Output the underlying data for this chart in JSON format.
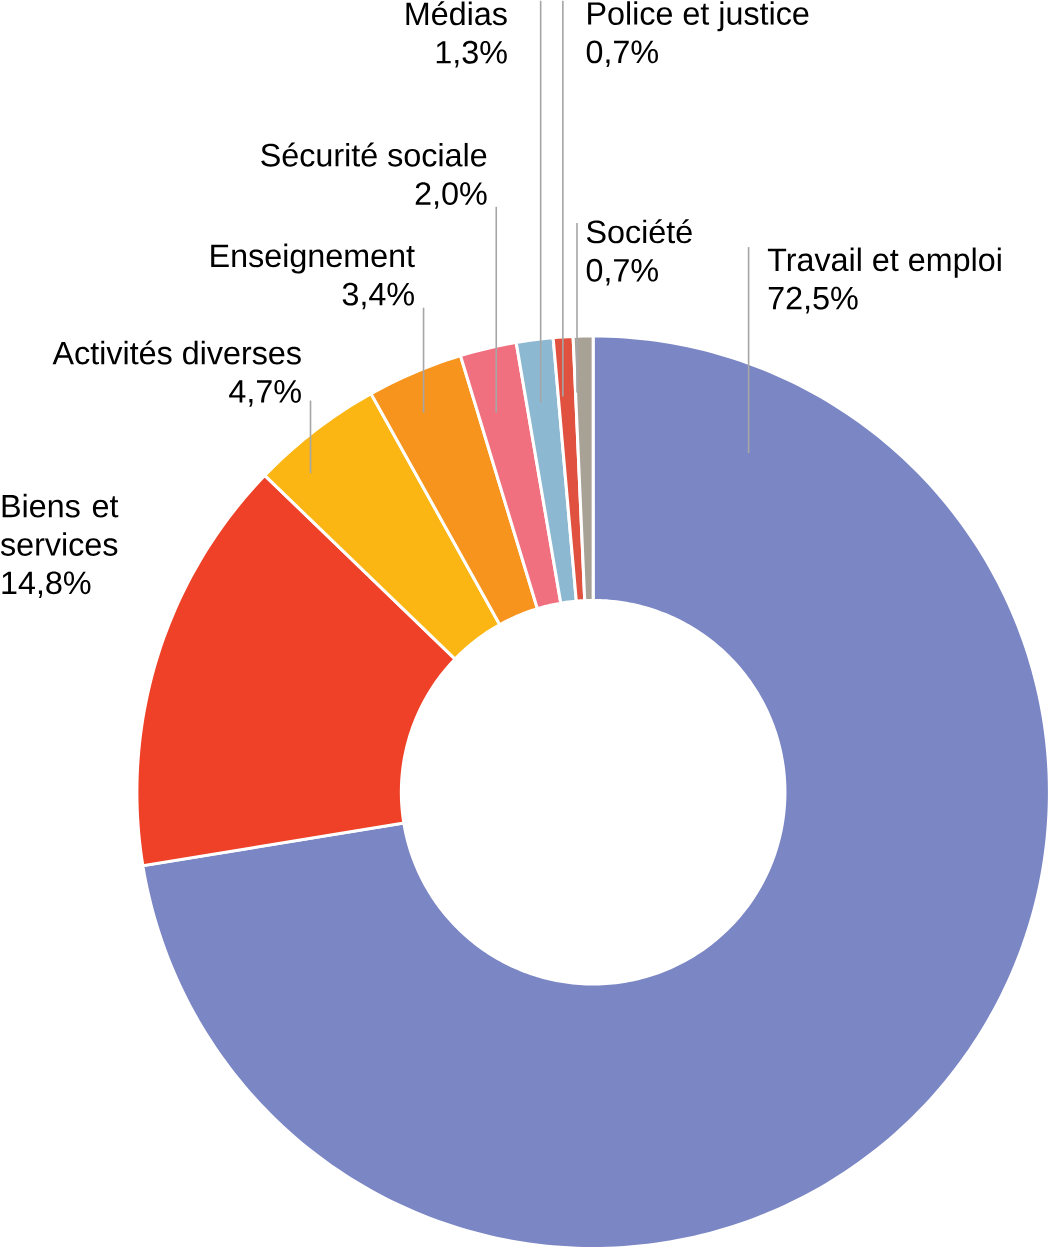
{
  "chart_data": {
    "type": "donut",
    "categories": [
      "Travail et emploi",
      "Biens et services",
      "Activités diverses",
      "Enseignement",
      "Sécurité sociale",
      "Médias",
      "Police et justice",
      "Société"
    ],
    "values": [
      72.5,
      14.8,
      4.7,
      3.4,
      2.0,
      1.3,
      0.7,
      0.7
    ],
    "value_labels": [
      "72,5%",
      "14,8%",
      "4,7%",
      "3,4%",
      "2,0%",
      "1,3%",
      "0,7%",
      "0,7%"
    ],
    "colors": [
      "#7b86c4",
      "#ee4127",
      "#fbb614",
      "#f7941d",
      "#f0707f",
      "#8cb8d1",
      "#e0523f",
      "#a8a196"
    ]
  }
}
